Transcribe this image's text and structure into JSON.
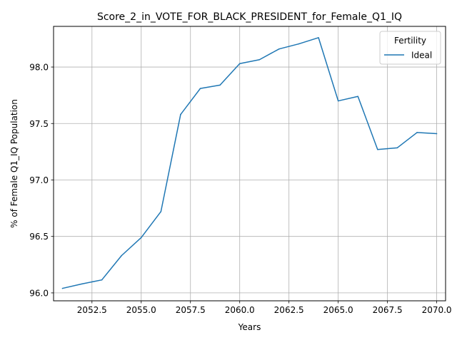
{
  "chart_data": {
    "type": "line",
    "title": "Score_2_in_VOTE_FOR_BLACK_PRESIDENT_for_Female_Q1_IQ",
    "xlabel": "Years",
    "ylabel": "% of Female Q1_IQ Population",
    "xlim": [
      2050.55,
      2070.45
    ],
    "ylim": [
      95.93,
      98.36
    ],
    "xticks": [
      2052.5,
      2055.0,
      2057.5,
      2060.0,
      2062.5,
      2065.0,
      2067.5,
      2070.0
    ],
    "xtick_labels": [
      "2052.5",
      "2055.0",
      "2057.5",
      "2060.0",
      "2062.5",
      "2065.0",
      "2067.5",
      "2070.0"
    ],
    "yticks": [
      96.0,
      96.5,
      97.0,
      97.5,
      98.0
    ],
    "ytick_labels": [
      "96.0",
      "96.5",
      "97.0",
      "97.5",
      "98.0"
    ],
    "grid": true,
    "legend": {
      "title": "Fertility",
      "placement": "upper right"
    },
    "series": [
      {
        "name": "Ideal",
        "color": "#1f77b4",
        "x": [
          2051,
          2052,
          2053,
          2054,
          2055,
          2056,
          2057,
          2058,
          2059,
          2060,
          2061,
          2062,
          2063,
          2064,
          2065,
          2066,
          2067,
          2068,
          2069,
          2070
        ],
        "y": [
          96.04,
          96.08,
          96.115,
          96.33,
          96.49,
          96.72,
          97.58,
          97.81,
          97.84,
          98.03,
          98.065,
          98.16,
          98.205,
          98.26,
          97.7,
          97.74,
          97.27,
          97.285,
          97.42,
          97.41
        ]
      }
    ]
  }
}
